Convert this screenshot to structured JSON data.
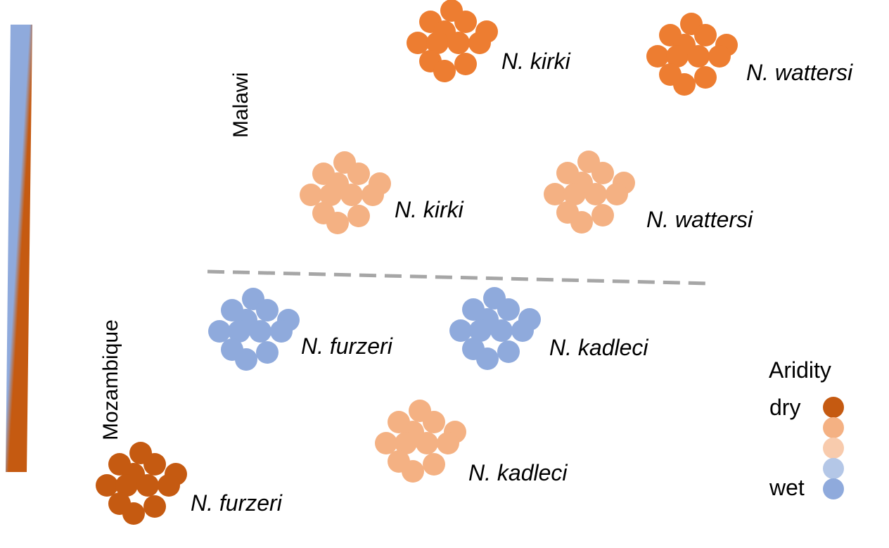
{
  "regions": {
    "north": "Malawi",
    "south": "Mozambique"
  },
  "legend": {
    "title": "Aridity",
    "dry_label": "dry",
    "wet_label": "wet",
    "levels": [
      {
        "name": "very-dry",
        "color": "#c55a11"
      },
      {
        "name": "dry",
        "color": "#f4b183"
      },
      {
        "name": "mid",
        "color": "#f8cbad"
      },
      {
        "name": "wet",
        "color": "#b4c7e7"
      },
      {
        "name": "very-wet",
        "color": "#8faadc"
      }
    ]
  },
  "gradient_bar": {
    "top_color": "#8faadc",
    "bottom_color": "#c55a11"
  },
  "divider_color": "#a6a6a6",
  "colors": {
    "very_dry": "#c55a11",
    "dry_orange": "#ed7d31",
    "light_orange": "#f4b183",
    "blue": "#8faadc"
  },
  "populations": [
    {
      "species": "N. kirki",
      "region": "Malawi",
      "aridity": "dry_orange"
    },
    {
      "species": "N. wattersi",
      "region": "Malawi",
      "aridity": "dry_orange"
    },
    {
      "species": "N. kirki",
      "region": "Malawi",
      "aridity": "light_orange"
    },
    {
      "species": "N. wattersi",
      "region": "Malawi",
      "aridity": "light_orange"
    },
    {
      "species": "N. furzeri",
      "region": "Mozambique",
      "aridity": "blue"
    },
    {
      "species": "N. kadleci",
      "region": "Mozambique",
      "aridity": "blue"
    },
    {
      "species": "N. kadleci",
      "region": "Mozambique",
      "aridity": "light_orange"
    },
    {
      "species": "N. furzeri",
      "region": "Mozambique",
      "aridity": "very_dry"
    }
  ]
}
